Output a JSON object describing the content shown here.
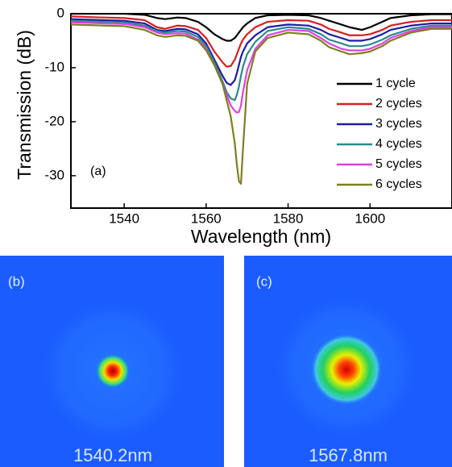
{
  "chart_data": {
    "type": "line",
    "x_label": "Wavelength (nm)",
    "y_label": "Transmission (dB)",
    "annotation": "(a)",
    "xlim": [
      1527,
      1620
    ],
    "ylim": [
      -36,
      0
    ],
    "xticks": [
      1540,
      1560,
      1580,
      1600
    ],
    "yticks": [
      0,
      -10,
      -20,
      -30
    ],
    "legend": "lower right",
    "x": [
      1527,
      1535,
      1540,
      1545,
      1548,
      1550,
      1553,
      1555,
      1558,
      1560,
      1562,
      1564,
      1565,
      1566,
      1567,
      1567.5,
      1568,
      1568.5,
      1569,
      1570,
      1572,
      1575,
      1580,
      1585,
      1588,
      1590,
      1593,
      1595,
      1598,
      1600,
      1603,
      1605,
      1610,
      1615,
      1620
    ],
    "series": [
      {
        "name": "1 cycle",
        "color": "#000000",
        "values": [
          0,
          0,
          0,
          -0.2,
          -0.8,
          -1,
          -0.7,
          -0.8,
          -1.5,
          -2.5,
          -3.8,
          -4.7,
          -5,
          -5,
          -4.5,
          -4,
          -3.5,
          -3,
          -2.5,
          -1.8,
          -0.8,
          -0.3,
          -0.2,
          -0.3,
          -0.8,
          -1.3,
          -2,
          -2.5,
          -3,
          -2.5,
          -1.5,
          -0.8,
          -0.3,
          -0.1,
          -0.1
        ]
      },
      {
        "name": "2 cycles",
        "color": "#d62020",
        "values": [
          -0.5,
          -0.7,
          -0.8,
          -1.2,
          -2.5,
          -2.8,
          -2.2,
          -2.3,
          -3,
          -4.5,
          -7,
          -9,
          -9.8,
          -9.7,
          -8.5,
          -7.5,
          -6.5,
          -5.5,
          -4.8,
          -3.8,
          -2.5,
          -1.5,
          -1.2,
          -1.3,
          -2,
          -2.8,
          -3.5,
          -4,
          -4,
          -3.8,
          -3,
          -2.2,
          -1.5,
          -1.2,
          -1.2
        ]
      },
      {
        "name": "3 cycles",
        "color": "#1c1ca8",
        "values": [
          -1,
          -1.2,
          -1.3,
          -1.8,
          -3,
          -3.2,
          -2.8,
          -2.9,
          -3.8,
          -5.5,
          -8.5,
          -11.5,
          -12.8,
          -13.2,
          -12.3,
          -11,
          -9.5,
          -8,
          -7,
          -5.5,
          -4,
          -2.5,
          -2,
          -2.2,
          -3,
          -3.8,
          -4.5,
          -5,
          -5,
          -4.7,
          -3.8,
          -3,
          -2.2,
          -1.8,
          -1.8
        ]
      },
      {
        "name": "4 cycles",
        "color": "#2a8a8a",
        "values": [
          -1.3,
          -1.5,
          -1.6,
          -2.2,
          -3.2,
          -3.5,
          -3.2,
          -3.3,
          -4.3,
          -6,
          -9,
          -12.5,
          -14.5,
          -15.7,
          -16,
          -15,
          -13.5,
          -11.5,
          -9.8,
          -7.5,
          -5.2,
          -3.2,
          -2.5,
          -2.8,
          -3.8,
          -4.8,
          -5.5,
          -6,
          -6,
          -5.7,
          -4.8,
          -4,
          -2.8,
          -2.2,
          -2.2
        ]
      },
      {
        "name": "5 cycles",
        "color": "#e040e0",
        "values": [
          -1.6,
          -1.8,
          -1.9,
          -2.5,
          -3.5,
          -3.8,
          -3.6,
          -3.7,
          -4.8,
          -6.5,
          -9.5,
          -13,
          -15,
          -17,
          -18,
          -18.3,
          -18.2,
          -17,
          -14.5,
          -10.5,
          -6.5,
          -4,
          -3,
          -3.2,
          -4.5,
          -5.5,
          -6.5,
          -6.8,
          -6.8,
          -6.5,
          -5.5,
          -4.5,
          -3.2,
          -2.5,
          -2.5
        ]
      },
      {
        "name": "6 cycles",
        "color": "#7e7e1e",
        "values": [
          -2,
          -2.2,
          -2.3,
          -3,
          -4,
          -4.3,
          -4,
          -4.1,
          -5,
          -6.8,
          -9.5,
          -13,
          -16,
          -19,
          -24,
          -28,
          -31,
          -31.5,
          -25,
          -13,
          -7,
          -4.5,
          -3.5,
          -3.8,
          -5,
          -6.2,
          -7,
          -7.5,
          -7.3,
          -7,
          -6,
          -5,
          -3.5,
          -2.8,
          -2.8
        ]
      }
    ]
  },
  "panels": [
    {
      "label": "(b)",
      "caption": "1540.2nm"
    },
    {
      "label": "(c)",
      "caption": "1567.8nm"
    }
  ]
}
